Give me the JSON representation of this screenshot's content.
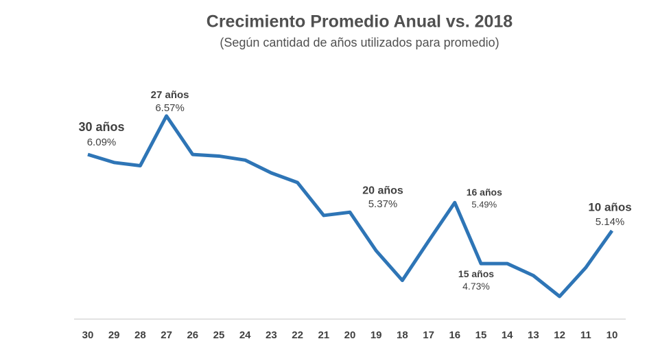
{
  "chart_data": {
    "type": "line",
    "title": "Crecimiento Promedio Anual vs. 2018",
    "subtitle": "(Según cantidad de años utilizados para promedio)",
    "categories": [
      "30",
      "29",
      "28",
      "27",
      "26",
      "25",
      "24",
      "23",
      "22",
      "21",
      "20",
      "19",
      "18",
      "17",
      "16",
      "15",
      "14",
      "13",
      "12",
      "11",
      "10"
    ],
    "series": [
      {
        "name": null,
        "color": "#2e75b6",
        "values": [
          6.09,
          5.99,
          5.95,
          6.57,
          6.09,
          6.07,
          6.02,
          5.86,
          5.74,
          5.33,
          5.37,
          4.89,
          4.52,
          5.01,
          5.49,
          4.73,
          4.73,
          4.58,
          4.32,
          4.68,
          5.14
        ],
        "value_labels": [
          "6.09%",
          null,
          null,
          "6.57%",
          null,
          null,
          null,
          null,
          null,
          null,
          "5.37%",
          null,
          null,
          null,
          "5.49%",
          "4.73%",
          null,
          null,
          null,
          null,
          "5.14%"
        ],
        "labels": [
          "30 años",
          null,
          null,
          "27 años",
          null,
          null,
          null,
          null,
          null,
          null,
          "20 años",
          null,
          null,
          null,
          "16 años",
          "15 años",
          null,
          null,
          null,
          null,
          "10 años"
        ]
      }
    ]
  }
}
